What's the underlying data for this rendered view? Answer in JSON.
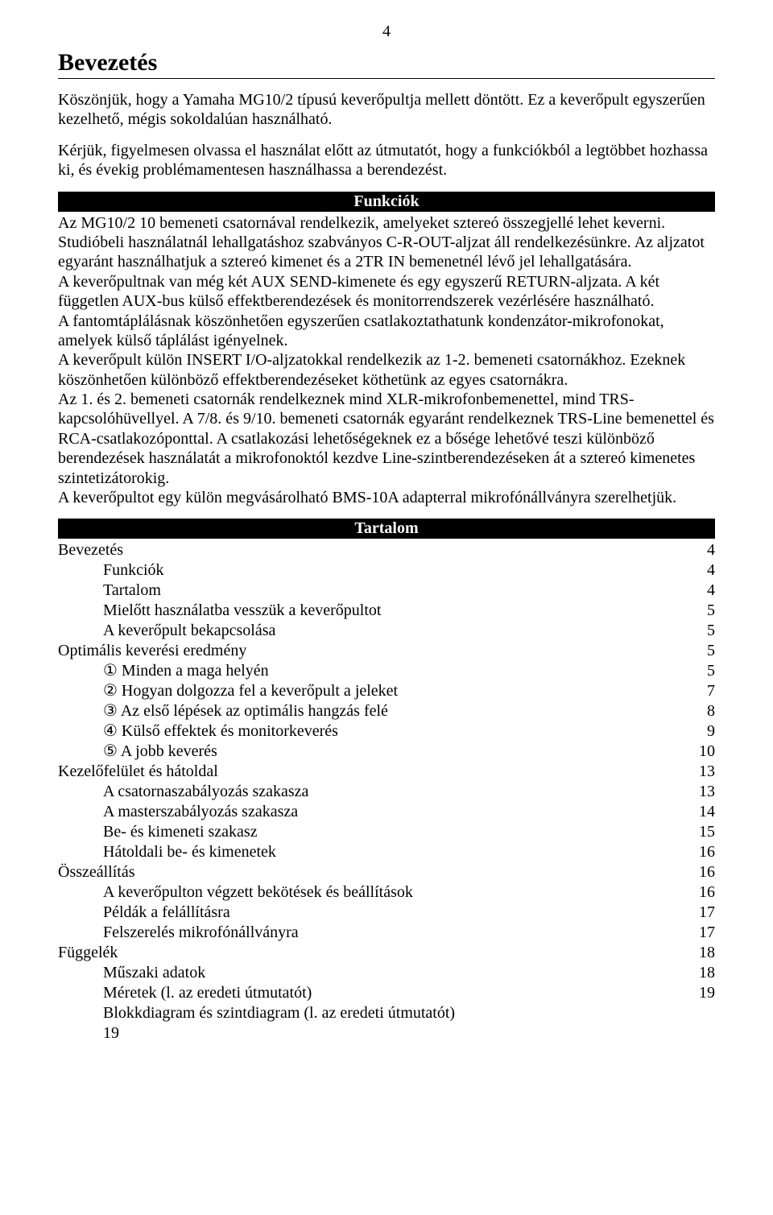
{
  "page_number": "4",
  "title": "Bevezetés",
  "intro_p1": "Köszönjük, hogy a Yamaha MG10/2  típusú keverőpultja mellett döntött. Ez a keverőpult egyszerűen kezelhető, mégis sokoldalúan használható.",
  "intro_p2": "Kérjük, figyelmesen olvassa el használat előtt az útmutatót, hogy a funkciókból a legtöbbet hozhassa ki, és évekig problémamentesen használhassa a berendezést.",
  "section_funkciok": "Funkciók",
  "funkciok_body": "Az MG10/2 10 bemeneti csatornával rendelkezik, amelyeket sztereó összegjellé lehet keverni.\nStudióbeli használatnál lehallgatáshoz szabványos C-R-OUT-aljzat áll rendelkezésünkre. Az aljzatot egyaránt használhatjuk a sztereó kimenet és a 2TR IN bemenetnél lévő jel lehallgatására.\nA keverőpultnak van még két AUX SEND-kimenete és egy egyszerű RETURN-aljzata. A két független AUX-bus külső effektberendezések és monitorrendszerek vezérlésére használható.\nA fantomtáplálásnak köszönhetően egyszerűen csatlakoztathatunk kondenzátor-mikrofonokat, amelyek külső táplálást igényelnek.\nA keverőpult külön INSERT I/O-aljzatokkal rendelkezik az 1-2. bemeneti csatornákhoz. Ezeknek köszönhetően különböző effektberendezéseket köthetünk az egyes csatornákra.\nAz 1. és 2. bemeneti csatornák rendelkeznek mind XLR-mikrofonbemenettel, mind TRS-kapcsolóhüvellyel. A 7/8. és 9/10. bemeneti csatornák egyaránt rendelkeznek TRS-Line bemenettel és RCA-csatlakozóponttal. A csatlakozási lehetőségeknek ez a bősége lehetővé teszi különböző berendezések használatát a mikrofonoktól kezdve Line-szintberendezéseken át a sztereó kimenetes szintetizátorokig.\nA keverőpultot egy külön megvásárolható BMS-10A adapterral mikrofónállványra szerelhetjük.",
  "section_tartalom": "Tartalom",
  "toc": [
    {
      "label": "Bevezetés",
      "page": "4",
      "indent": 0
    },
    {
      "label": "Funkciók",
      "page": "4",
      "indent": 1
    },
    {
      "label": "Tartalom",
      "page": "4",
      "indent": 1
    },
    {
      "label": "Mielőtt használatba vesszük a keverőpultot",
      "page": "5",
      "indent": 1
    },
    {
      "label": "A keverőpult bekapcsolása",
      "page": "5",
      "indent": 1
    },
    {
      "label": "Optimális keverési eredmény",
      "page": "5",
      "indent": 0
    },
    {
      "label": "① Minden a maga helyén",
      "page": "5",
      "indent": 1
    },
    {
      "label": "② Hogyan dolgozza fel a keverőpult a jeleket",
      "page": "7",
      "indent": 1
    },
    {
      "label": "③ Az első lépések az optimális hangzás felé",
      "page": "8",
      "indent": 1
    },
    {
      "label": "④ Külső effektek és monitorkeverés",
      "page": "9",
      "indent": 1
    },
    {
      "label": "⑤ A jobb keverés",
      "page": "10",
      "indent": 1
    },
    {
      "label": "Kezelőfelület és hátoldal",
      "page": "13",
      "indent": 0
    },
    {
      "label": "A csatornaszabályozás szakasza",
      "page": "13",
      "indent": 1
    },
    {
      "label": "A masterszabályozás szakasza",
      "page": "14",
      "indent": 1
    },
    {
      "label": "Be- és kimeneti szakasz",
      "page": "15",
      "indent": 1
    },
    {
      "label": "Hátoldali be- és kimenetek",
      "page": "16",
      "indent": 1
    },
    {
      "label": "Összeállítás",
      "page": "16",
      "indent": 0
    },
    {
      "label": "A keverőpulton végzett bekötések és beállítások",
      "page": "16",
      "indent": 1
    },
    {
      "label": "Példák a felállításra",
      "page": "17",
      "indent": 1
    },
    {
      "label": "Felszerelés mikrofónállványra",
      "page": "17",
      "indent": 1
    },
    {
      "label": "Függelék",
      "page": "18",
      "indent": 0
    },
    {
      "label": "Műszaki adatok",
      "page": "18",
      "indent": 1
    },
    {
      "label": "Méretek (l. az eredeti útmutatót)",
      "page": "19",
      "indent": 1
    },
    {
      "label": "Blokkdiagram és szintdiagram (l. az eredeti útmutatót)",
      "page": "",
      "indent": 1
    }
  ],
  "toc_trailing": "19"
}
